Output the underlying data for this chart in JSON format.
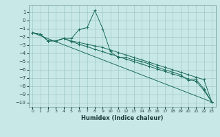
{
  "xlabel": "Humidex (Indice chaleur)",
  "bg_color": "#c8e8e8",
  "grid_color": "#a0c8c8",
  "line_color": "#1a6b5a",
  "xlim": [
    -0.5,
    23.5
  ],
  "ylim": [
    -10.5,
    1.8
  ],
  "yticks": [
    1,
    0,
    -1,
    -2,
    -3,
    -4,
    -5,
    -6,
    -7,
    -8,
    -9,
    -10
  ],
  "xticks": [
    0,
    1,
    2,
    3,
    4,
    5,
    6,
    7,
    8,
    9,
    10,
    11,
    12,
    13,
    14,
    15,
    16,
    17,
    18,
    19,
    20,
    21,
    22,
    23
  ],
  "series": [
    {
      "x": [
        0,
        1,
        2,
        3,
        4,
        5,
        6,
        7,
        8,
        9,
        10,
        11,
        12,
        13,
        14,
        15,
        16,
        17,
        18,
        19,
        20,
        21,
        22,
        23
      ],
      "y": [
        -1.5,
        -1.7,
        -2.5,
        -2.5,
        -2.2,
        -2.2,
        -1.1,
        -0.9,
        1.2,
        -1.0,
        -3.8,
        -4.5,
        -4.5,
        -4.8,
        -5.0,
        -5.3,
        -5.7,
        -6.0,
        -6.3,
        -6.6,
        -7.3,
        -7.2,
        -8.3,
        -9.9
      ],
      "has_markers": true
    },
    {
      "x": [
        0,
        1,
        2,
        3,
        4,
        5,
        6,
        7,
        8,
        9,
        10,
        11,
        12,
        13,
        14,
        15,
        16,
        17,
        18,
        19,
        20,
        21,
        22,
        23
      ],
      "y": [
        -1.5,
        -1.7,
        -2.5,
        -2.5,
        -2.2,
        -2.5,
        -2.7,
        -2.9,
        -3.1,
        -3.3,
        -3.6,
        -3.9,
        -4.2,
        -4.5,
        -4.8,
        -5.1,
        -5.4,
        -5.7,
        -6.0,
        -6.3,
        -6.6,
        -6.9,
        -7.2,
        -9.9
      ],
      "has_markers": true
    },
    {
      "x": [
        0,
        1,
        2,
        3,
        4,
        5,
        6,
        7,
        8,
        9,
        10,
        11,
        12,
        13,
        14,
        15,
        16,
        17,
        18,
        19,
        20,
        21,
        22,
        23
      ],
      "y": [
        -1.5,
        -1.7,
        -2.5,
        -2.5,
        -2.2,
        -2.6,
        -2.9,
        -3.2,
        -3.5,
        -3.8,
        -4.1,
        -4.4,
        -4.7,
        -5.0,
        -5.3,
        -5.6,
        -5.9,
        -6.2,
        -6.5,
        -6.8,
        -7.1,
        -7.4,
        -8.5,
        -9.9
      ],
      "has_markers": true
    },
    {
      "x": [
        0,
        23
      ],
      "y": [
        -1.5,
        -9.9
      ],
      "has_markers": false
    }
  ]
}
